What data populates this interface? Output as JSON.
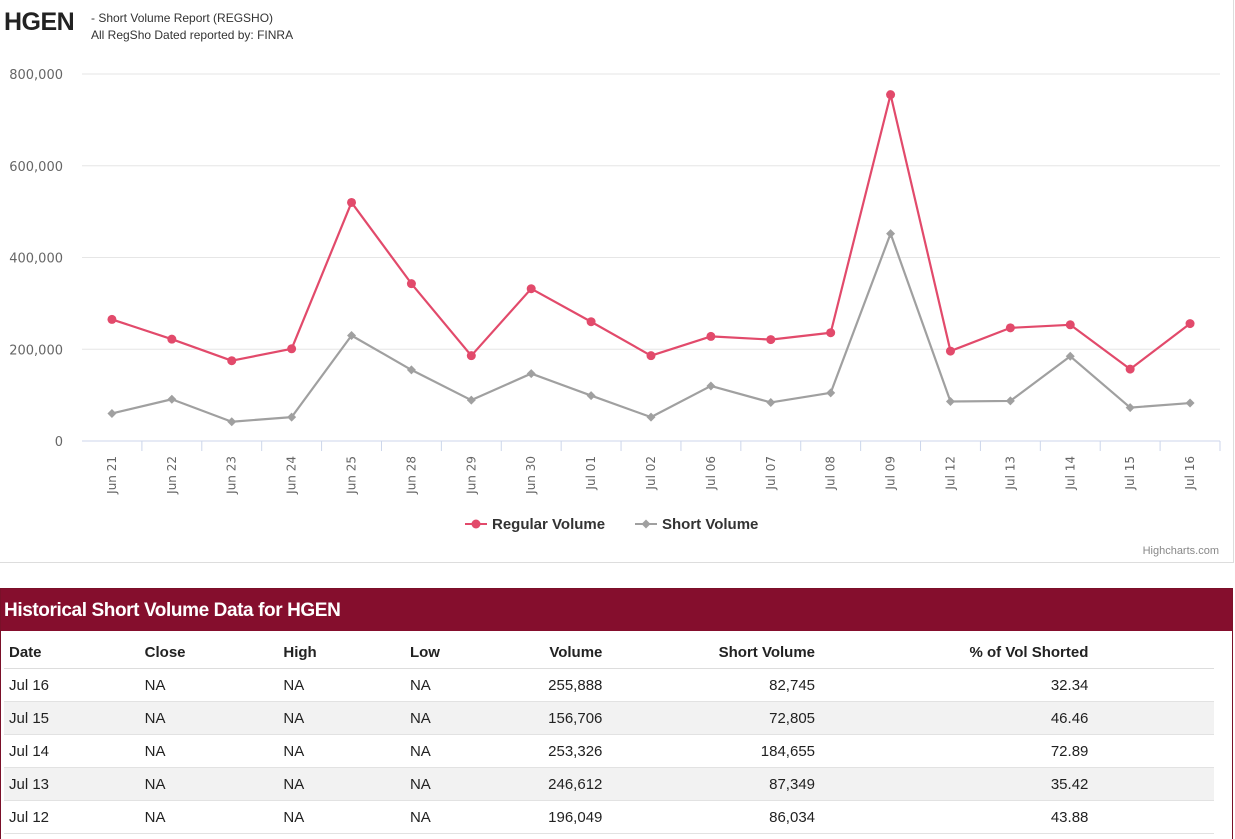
{
  "header": {
    "ticker": "HGEN",
    "subtitle_line1": "- Short Volume Report  (REGSHO)",
    "subtitle_line2": "All RegSho Dated reported by: FINRA"
  },
  "chart_data": {
    "type": "line",
    "categories": [
      "Jun 21",
      "Jun 22",
      "Jun 23",
      "Jun 24",
      "Jun 25",
      "Jun 28",
      "Jun 29",
      "Jun 30",
      "Jul 01",
      "Jul 02",
      "Jul 06",
      "Jul 07",
      "Jul 08",
      "Jul 09",
      "Jul 12",
      "Jul 13",
      "Jul 14",
      "Jul 15",
      "Jul 16"
    ],
    "series": [
      {
        "name": "Regular Volume",
        "color": "#e24a6b",
        "marker": "circle",
        "values": [
          265000,
          222000,
          175000,
          201000,
          520000,
          343000,
          186000,
          332000,
          260000,
          186000,
          228000,
          221000,
          236000,
          755000,
          196049,
          246612,
          253326,
          156706,
          255888
        ]
      },
      {
        "name": "Short Volume",
        "color": "#a0a0a0",
        "marker": "diamond",
        "values": [
          60000,
          91000,
          42000,
          52000,
          230000,
          155000,
          89000,
          147000,
          99000,
          52000,
          120000,
          84000,
          105000,
          452000,
          86034,
          87349,
          184655,
          72805,
          82745
        ]
      }
    ],
    "ylim": [
      0,
      800000
    ],
    "yticks": [
      "0",
      "200,000",
      "400,000",
      "600,000",
      "800,000"
    ],
    "ytick_values": [
      0,
      200000,
      400000,
      600000,
      800000
    ],
    "grid": true,
    "legend_placement": "bottom-center",
    "title": "",
    "xlabel": "",
    "ylabel": ""
  },
  "credits": "Highcharts.com",
  "table": {
    "title": "Historical Short Volume Data for HGEN",
    "columns": [
      "Date",
      "Close",
      "High",
      "Low",
      "Volume",
      "Short Volume",
      "% of Vol Shorted"
    ],
    "rows": [
      [
        "Jul 16",
        "NA",
        "NA",
        "NA",
        "255,888",
        "82,745",
        "32.34"
      ],
      [
        "Jul 15",
        "NA",
        "NA",
        "NA",
        "156,706",
        "72,805",
        "46.46"
      ],
      [
        "Jul 14",
        "NA",
        "NA",
        "NA",
        "253,326",
        "184,655",
        "72.89"
      ],
      [
        "Jul 13",
        "NA",
        "NA",
        "NA",
        "246,612",
        "87,349",
        "35.42"
      ],
      [
        "Jul 12",
        "NA",
        "NA",
        "NA",
        "196,049",
        "86,034",
        "43.88"
      ]
    ]
  }
}
